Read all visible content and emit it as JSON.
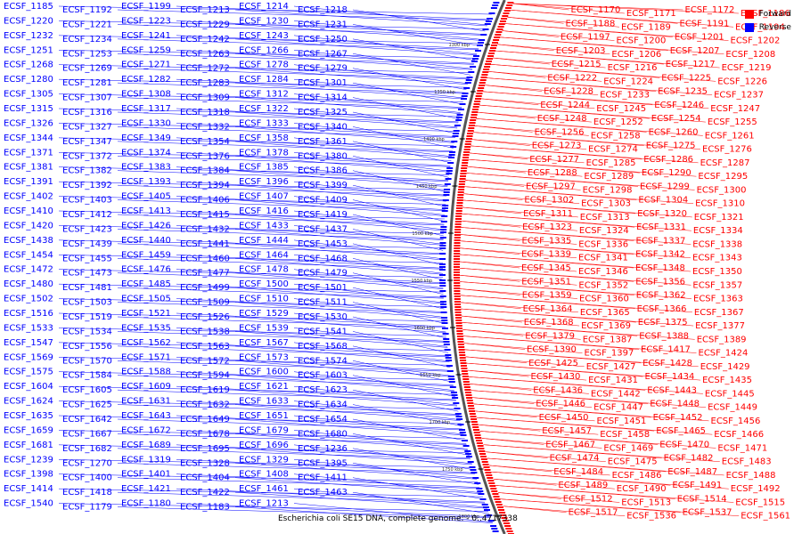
{
  "caption": "Escherichia coli SE15 DNA, complete genome. - 0..4717338",
  "legend": {
    "forward_label": "Forward",
    "reverse_label": "Reverse",
    "forward_color": "#ff0000",
    "reverse_color": "#0000ff"
  },
  "colors": {
    "backbone": "#555555",
    "ticks": "#000000"
  },
  "ticks": [
    "1300 kbp",
    "1350 kbp",
    "1400 kbp",
    "1450 kbp",
    "1500 kbp",
    "1550 kbp",
    "1600 kbp",
    "1650 kbp",
    "1700 kbp",
    "1750 kbp",
    "1800 kbp"
  ],
  "reverse_genes": [
    "ECSF_1185",
    "ECSF_1192",
    "ECSF_1199",
    "ECSF_1213",
    "ECSF_1214",
    "ECSF_1218",
    "ECSF_1220",
    "ECSF_1221",
    "ECSF_1223",
    "ECSF_1229",
    "ECSF_1230",
    "ECSF_1231",
    "ECSF_1232",
    "ECSF_1234",
    "ECSF_1241",
    "ECSF_1242",
    "ECSF_1243",
    "ECSF_1250",
    "ECSF_1251",
    "ECSF_1253",
    "ECSF_1259",
    "ECSF_1263",
    "ECSF_1266",
    "ECSF_1267",
    "ECSF_1268",
    "ECSF_1269",
    "ECSF_1271",
    "ECSF_1272",
    "ECSF_1278",
    "ECSF_1279",
    "ECSF_1280",
    "ECSF_1281",
    "ECSF_1282",
    "ECSF_1283",
    "ECSF_1284",
    "ECSF_1301",
    "ECSF_1305",
    "ECSF_1307",
    "ECSF_1308",
    "ECSF_1309",
    "ECSF_1312",
    "ECSF_1314",
    "ECSF_1315",
    "ECSF_1316",
    "ECSF_1317",
    "ECSF_1318",
    "ECSF_1322",
    "ECSF_1325",
    "ECSF_1326",
    "ECSF_1327",
    "ECSF_1330",
    "ECSF_1332",
    "ECSF_1333",
    "ECSF_1340",
    "ECSF_1344",
    "ECSF_1347",
    "ECSF_1349",
    "ECSF_1354",
    "ECSF_1358",
    "ECSF_1361",
    "ECSF_1371",
    "ECSF_1372",
    "ECSF_1374",
    "ECSF_1376",
    "ECSF_1378",
    "ECSF_1380",
    "ECSF_1381",
    "ECSF_1382",
    "ECSF_1383",
    "ECSF_1384",
    "ECSF_1385",
    "ECSF_1386",
    "ECSF_1391",
    "ECSF_1392",
    "ECSF_1393",
    "ECSF_1394",
    "ECSF_1396",
    "ECSF_1399",
    "ECSF_1402",
    "ECSF_1403",
    "ECSF_1405",
    "ECSF_1406",
    "ECSF_1407",
    "ECSF_1409",
    "ECSF_1410",
    "ECSF_1412",
    "ECSF_1413",
    "ECSF_1415",
    "ECSF_1416",
    "ECSF_1419",
    "ECSF_1420",
    "ECSF_1423",
    "ECSF_1426",
    "ECSF_1432",
    "ECSF_1433",
    "ECSF_1437",
    "ECSF_1438",
    "ECSF_1439",
    "ECSF_1440",
    "ECSF_1441",
    "ECSF_1444",
    "ECSF_1453",
    "ECSF_1454",
    "ECSF_1455",
    "ECSF_1459",
    "ECSF_1460",
    "ECSF_1464",
    "ECSF_1468",
    "ECSF_1472",
    "ECSF_1473",
    "ECSF_1476",
    "ECSF_1477",
    "ECSF_1478",
    "ECSF_1479",
    "ECSF_1480",
    "ECSF_1481",
    "ECSF_1485",
    "ECSF_1499",
    "ECSF_1500",
    "ECSF_1501",
    "ECSF_1502",
    "ECSF_1503",
    "ECSF_1505",
    "ECSF_1509",
    "ECSF_1510",
    "ECSF_1511",
    "ECSF_1516",
    "ECSF_1519",
    "ECSF_1521",
    "ECSF_1526",
    "ECSF_1529",
    "ECSF_1530",
    "ECSF_1533",
    "ECSF_1534",
    "ECSF_1535",
    "ECSF_1538",
    "ECSF_1539",
    "ECSF_1541",
    "ECSF_1547",
    "ECSF_1556",
    "ECSF_1562",
    "ECSF_1563",
    "ECSF_1567",
    "ECSF_1568",
    "ECSF_1569",
    "ECSF_1570",
    "ECSF_1571",
    "ECSF_1572",
    "ECSF_1573",
    "ECSF_1574",
    "ECSF_1575",
    "ECSF_1584",
    "ECSF_1588",
    "ECSF_1594",
    "ECSF_1600",
    "ECSF_1603",
    "ECSF_1604",
    "ECSF_1605",
    "ECSF_1609",
    "ECSF_1619",
    "ECSF_1621",
    "ECSF_1623",
    "ECSF_1624",
    "ECSF_1625",
    "ECSF_1631",
    "ECSF_1632",
    "ECSF_1633",
    "ECSF_1634",
    "ECSF_1635",
    "ECSF_1642",
    "ECSF_1643",
    "ECSF_1649",
    "ECSF_1651",
    "ECSF_1654",
    "ECSF_1659",
    "ECSF_1667",
    "ECSF_1672",
    "ECSF_1678",
    "ECSF_1679",
    "ECSF_1680",
    "ECSF_1681",
    "ECSF_1682",
    "ECSF_1689",
    "ECSF_1695",
    "ECSF_1696",
    "ECSF_1236",
    "ECSF_1239",
    "ECSF_1270",
    "ECSF_1319",
    "ECSF_1328",
    "ECSF_1329",
    "ECSF_1395",
    "ECSF_1398",
    "ECSF_1400",
    "ECSF_1401",
    "ECSF_1404",
    "ECSF_1408",
    "ECSF_1411",
    "ECSF_1414",
    "ECSF_1418",
    "ECSF_1421",
    "ECSF_1422",
    "ECSF_1461",
    "ECSF_1463",
    "ECSF_1540",
    "ECSF_1179",
    "ECSF_1180",
    "ECSF_1183",
    "ECSF_1213"
  ],
  "forward_genes": [
    "ECSF_1170",
    "ECSF_1171",
    "ECSF_1172",
    "ECSF_1186",
    "ECSF_1188",
    "ECSF_1189",
    "ECSF_1191",
    "ECSF_1194",
    "ECSF_1197",
    "ECSF_1200",
    "ECSF_1201",
    "ECSF_1202",
    "ECSF_1203",
    "ECSF_1206",
    "ECSF_1207",
    "ECSF_1208",
    "ECSF_1215",
    "ECSF_1216",
    "ECSF_1217",
    "ECSF_1219",
    "ECSF_1222",
    "ECSF_1224",
    "ECSF_1225",
    "ECSF_1226",
    "ECSF_1228",
    "ECSF_1233",
    "ECSF_1235",
    "ECSF_1237",
    "ECSF_1244",
    "ECSF_1245",
    "ECSF_1246",
    "ECSF_1247",
    "ECSF_1248",
    "ECSF_1252",
    "ECSF_1254",
    "ECSF_1255",
    "ECSF_1256",
    "ECSF_1258",
    "ECSF_1260",
    "ECSF_1261",
    "ECSF_1273",
    "ECSF_1274",
    "ECSF_1275",
    "ECSF_1276",
    "ECSF_1277",
    "ECSF_1285",
    "ECSF_1286",
    "ECSF_1287",
    "ECSF_1288",
    "ECSF_1289",
    "ECSF_1290",
    "ECSF_1295",
    "ECSF_1297",
    "ECSF_1298",
    "ECSF_1299",
    "ECSF_1300",
    "ECSF_1302",
    "ECSF_1303",
    "ECSF_1304",
    "ECSF_1310",
    "ECSF_1311",
    "ECSF_1313",
    "ECSF_1320",
    "ECSF_1321",
    "ECSF_1323",
    "ECSF_1324",
    "ECSF_1331",
    "ECSF_1334",
    "ECSF_1335",
    "ECSF_1336",
    "ECSF_1337",
    "ECSF_1338",
    "ECSF_1339",
    "ECSF_1341",
    "ECSF_1342",
    "ECSF_1343",
    "ECSF_1345",
    "ECSF_1346",
    "ECSF_1348",
    "ECSF_1350",
    "ECSF_1351",
    "ECSF_1352",
    "ECSF_1356",
    "ECSF_1357",
    "ECSF_1359",
    "ECSF_1360",
    "ECSF_1362",
    "ECSF_1363",
    "ECSF_1364",
    "ECSF_1365",
    "ECSF_1366",
    "ECSF_1367",
    "ECSF_1368",
    "ECSF_1369",
    "ECSF_1375",
    "ECSF_1377",
    "ECSF_1379",
    "ECSF_1387",
    "ECSF_1388",
    "ECSF_1389",
    "ECSF_1390",
    "ECSF_1397",
    "ECSF_1417",
    "ECSF_1424",
    "ECSF_1425",
    "ECSF_1427",
    "ECSF_1428",
    "ECSF_1429",
    "ECSF_1430",
    "ECSF_1431",
    "ECSF_1434",
    "ECSF_1435",
    "ECSF_1436",
    "ECSF_1442",
    "ECSF_1443",
    "ECSF_1445",
    "ECSF_1446",
    "ECSF_1447",
    "ECSF_1448",
    "ECSF_1449",
    "ECSF_1450",
    "ECSF_1451",
    "ECSF_1452",
    "ECSF_1456",
    "ECSF_1457",
    "ECSF_1458",
    "ECSF_1465",
    "ECSF_1466",
    "ECSF_1467",
    "ECSF_1469",
    "ECSF_1470",
    "ECSF_1471",
    "ECSF_1474",
    "ECSF_1475",
    "ECSF_1482",
    "ECSF_1483",
    "ECSF_1484",
    "ECSF_1486",
    "ECSF_1487",
    "ECSF_1488",
    "ECSF_1489",
    "ECSF_1490",
    "ECSF_1491",
    "ECSF_1492",
    "ECSF_1512",
    "ECSF_1513",
    "ECSF_1514",
    "ECSF_1515",
    "ECSF_1517",
    "ECSF_1536",
    "ECSF_1537",
    "ECSF_1561"
  ]
}
